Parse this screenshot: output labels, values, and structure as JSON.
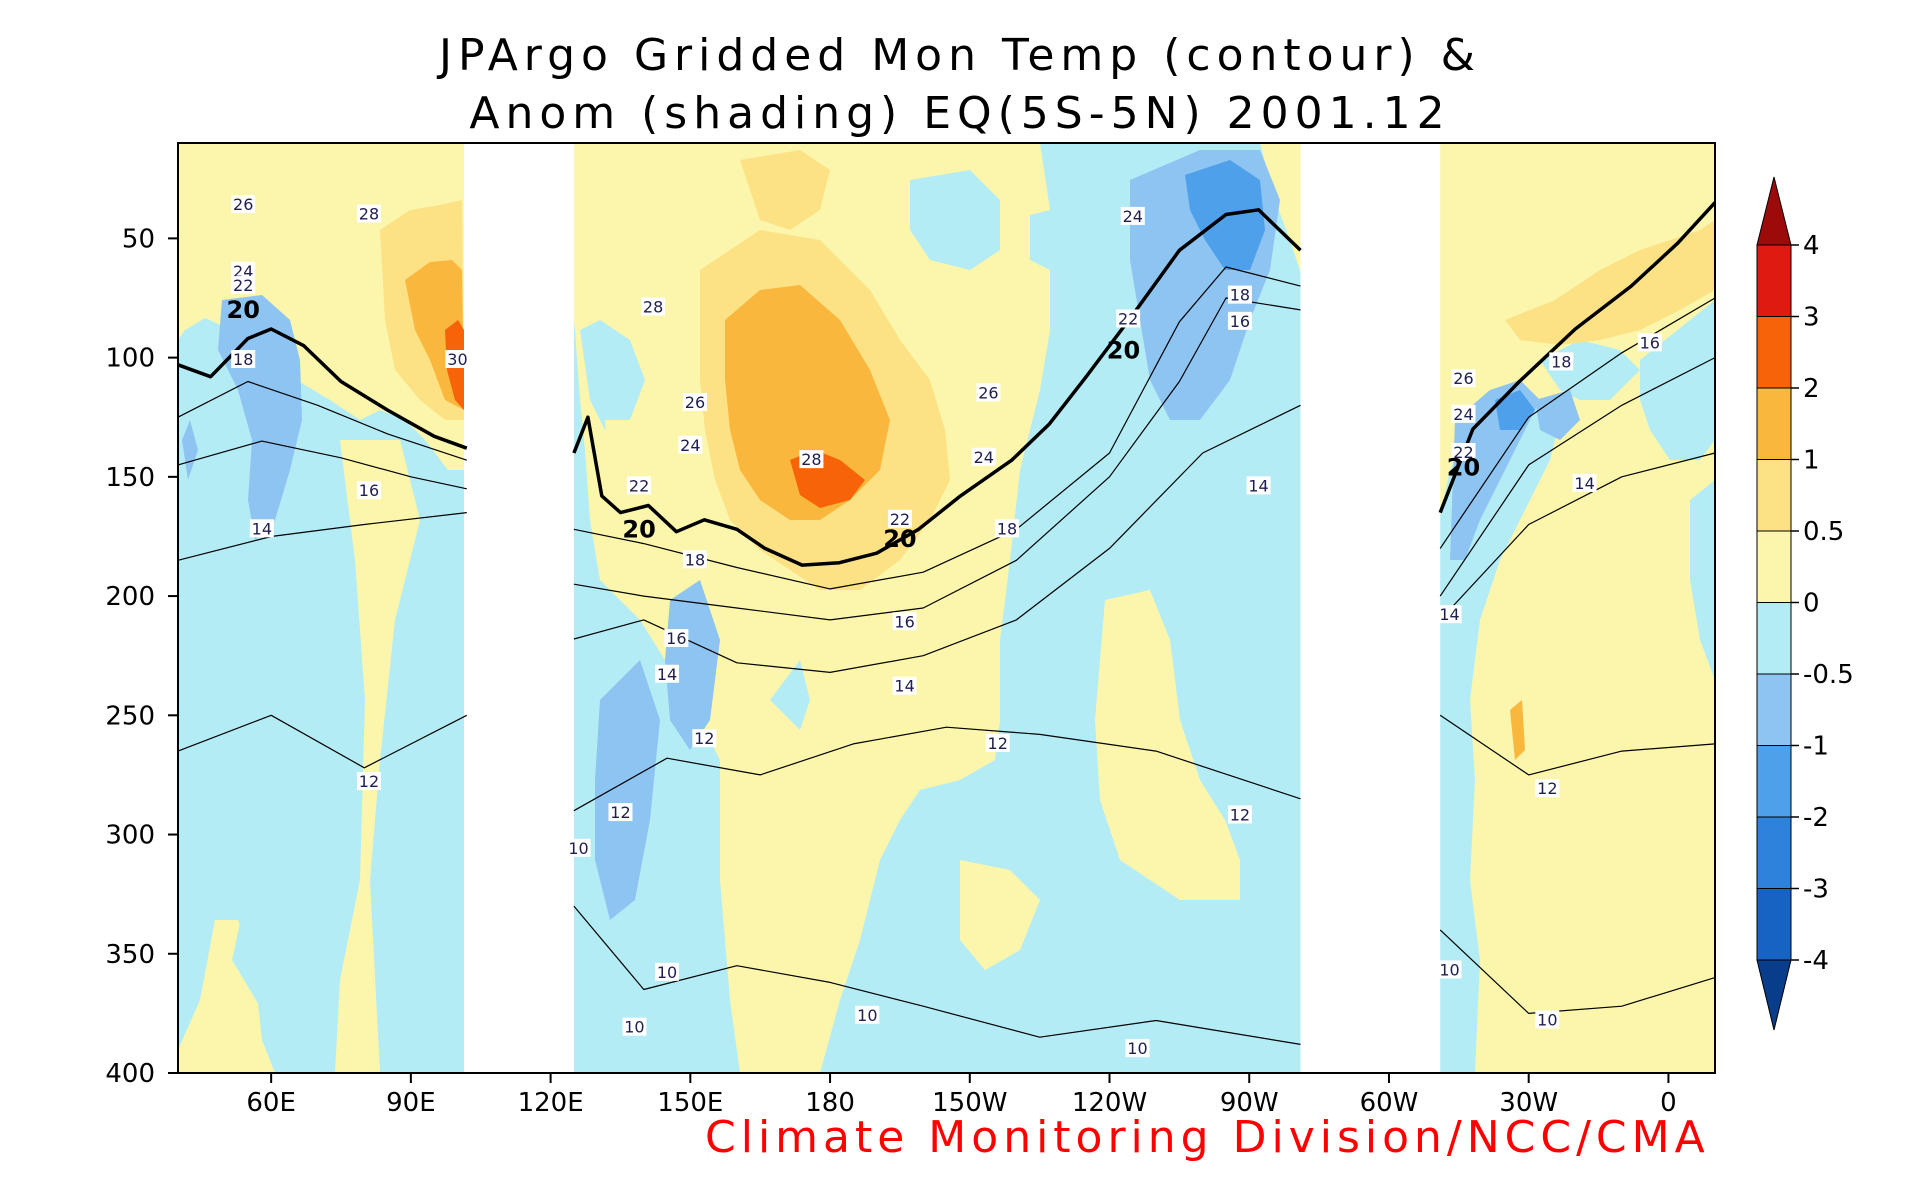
{
  "title_line1": "JPArgo Gridded Mon Temp (contour) &",
  "title_line2": "Anom (shading) EQ(5S-5N) 2001.12",
  "credit": "Climate Monitoring Division/NCC/CMA",
  "chart_data": {
    "type": "heatmap",
    "title": "JPArgo Gridded Mon Temp (contour) & Anom (shading) EQ(5S-5N) 2001.12",
    "x_ticks": [
      "60E",
      "90E",
      "120E",
      "150E",
      "180",
      "150W",
      "120W",
      "90W",
      "60W",
      "30W",
      "0"
    ],
    "x_range_deg_east": [
      40,
      370
    ],
    "y_ticks": [
      50,
      100,
      150,
      200,
      250,
      300,
      350,
      400
    ],
    "y_range": [
      10,
      400
    ],
    "y_inverted": true,
    "colorbar": {
      "levels": [
        -4,
        -3,
        -2,
        -1,
        -0.5,
        0,
        0.5,
        1,
        2,
        3,
        4
      ],
      "labels": [
        "-4",
        "-3",
        "-2",
        "-1",
        "-0.5",
        "0",
        "0.5",
        "1",
        "2",
        "3",
        "4"
      ],
      "colors": [
        "#083d8c",
        "#1663c4",
        "#2d82dc",
        "#4fa0ea",
        "#8ec4f2",
        "#b4ecf6",
        "#fbf6ac",
        "#fce285",
        "#f9b73e",
        "#f76308",
        "#df1a10",
        "#9c0a0a"
      ]
    },
    "missing_ranges_deg_east": [
      [
        102,
        125
      ],
      [
        281,
        311
      ]
    ],
    "contours": [
      {
        "value": 20,
        "bold": true,
        "segments": [
          [
            [
              40,
              103
            ],
            [
              47,
              108
            ],
            [
              55,
              92
            ],
            [
              60,
              88
            ],
            [
              67,
              95
            ],
            [
              75,
              110
            ],
            [
              85,
              122
            ],
            [
              95,
              133
            ],
            [
              102,
              138
            ]
          ],
          [
            [
              125,
              140
            ],
            [
              128,
              125
            ],
            [
              131,
              158
            ],
            [
              135,
              165
            ],
            [
              141,
              162
            ],
            [
              147,
              173
            ],
            [
              153,
              168
            ],
            [
              160,
              172
            ],
            [
              166,
              180
            ],
            [
              174,
              187
            ],
            [
              182,
              186
            ],
            [
              190,
              182
            ],
            [
              199,
              172
            ],
            [
              208,
              158
            ],
            [
              219,
              143
            ],
            [
              227,
              128
            ],
            [
              235,
              108
            ],
            [
              245,
              82
            ],
            [
              255,
              55
            ],
            [
              265,
              40
            ],
            [
              272,
              38
            ],
            [
              281,
              55
            ]
          ],
          [
            [
              311,
              165
            ],
            [
              318,
              130
            ],
            [
              328,
              110
            ],
            [
              340,
              88
            ],
            [
              352,
              70
            ],
            [
              362,
              52
            ],
            [
              370,
              35
            ]
          ]
        ]
      },
      {
        "value": 18,
        "bold": false,
        "segments": [
          [
            [
              40,
              125
            ],
            [
              55,
              110
            ],
            [
              70,
              120
            ],
            [
              85,
              132
            ],
            [
              102,
              143
            ]
          ],
          [
            [
              125,
              172
            ],
            [
              140,
              178
            ],
            [
              160,
              188
            ],
            [
              180,
              197
            ],
            [
              200,
              190
            ],
            [
              220,
              172
            ],
            [
              240,
              140
            ],
            [
              255,
              85
            ],
            [
              265,
              62
            ],
            [
              281,
              70
            ]
          ],
          [
            [
              311,
              180
            ],
            [
              330,
              125
            ],
            [
              350,
              98
            ],
            [
              370,
              75
            ]
          ]
        ]
      },
      {
        "value": 16,
        "bold": false,
        "segments": [
          [
            [
              40,
              145
            ],
            [
              58,
              135
            ],
            [
              75,
              142
            ],
            [
              90,
              150
            ],
            [
              102,
              155
            ]
          ],
          [
            [
              125,
              195
            ],
            [
              140,
              200
            ],
            [
              160,
              205
            ],
            [
              180,
              210
            ],
            [
              200,
              205
            ],
            [
              220,
              185
            ],
            [
              240,
              150
            ],
            [
              255,
              110
            ],
            [
              265,
              75
            ],
            [
              281,
              80
            ]
          ],
          [
            [
              311,
              200
            ],
            [
              330,
              145
            ],
            [
              350,
              120
            ],
            [
              370,
              100
            ]
          ]
        ]
      },
      {
        "value": 14,
        "bold": false,
        "segments": [
          [
            [
              40,
              185
            ],
            [
              60,
              175
            ],
            [
              80,
              170
            ],
            [
              102,
              165
            ]
          ],
          [
            [
              125,
              218
            ],
            [
              140,
              210
            ],
            [
              160,
              228
            ],
            [
              180,
              232
            ],
            [
              200,
              225
            ],
            [
              220,
              210
            ],
            [
              240,
              180
            ],
            [
              260,
              140
            ],
            [
              281,
              120
            ]
          ],
          [
            [
              311,
              210
            ],
            [
              330,
              170
            ],
            [
              350,
              150
            ],
            [
              370,
              140
            ]
          ]
        ]
      },
      {
        "value": 12,
        "bold": false,
        "segments": [
          [
            [
              40,
              265
            ],
            [
              60,
              250
            ],
            [
              80,
              272
            ],
            [
              102,
              250
            ]
          ],
          [
            [
              125,
              290
            ],
            [
              145,
              268
            ],
            [
              165,
              275
            ],
            [
              185,
              262
            ],
            [
              205,
              255
            ],
            [
              225,
              258
            ],
            [
              250,
              265
            ],
            [
              281,
              285
            ]
          ],
          [
            [
              311,
              250
            ],
            [
              330,
              275
            ],
            [
              350,
              265
            ],
            [
              370,
              262
            ]
          ]
        ]
      },
      {
        "value": 10,
        "bold": false,
        "segments": [
          [
            [
              125,
              330
            ],
            [
              140,
              365
            ],
            [
              160,
              355
            ],
            [
              180,
              362
            ],
            [
              200,
              372
            ],
            [
              225,
              385
            ],
            [
              250,
              378
            ],
            [
              281,
              388
            ]
          ],
          [
            [
              311,
              340
            ],
            [
              330,
              375
            ],
            [
              350,
              372
            ],
            [
              370,
              360
            ]
          ]
        ]
      }
    ],
    "contour_labels": [
      {
        "text": "26",
        "lon": 54,
        "depth": 36
      },
      {
        "text": "28",
        "lon": 81,
        "depth": 40
      },
      {
        "text": "24",
        "lon": 54,
        "depth": 64
      },
      {
        "text": "22",
        "lon": 54,
        "depth": 70
      },
      {
        "text": "20",
        "lon": 54,
        "depth": 80,
        "bold": true
      },
      {
        "text": "18",
        "lon": 54,
        "depth": 101
      },
      {
        "text": "30",
        "lon": 100,
        "depth": 101
      },
      {
        "text": "16",
        "lon": 81,
        "depth": 156
      },
      {
        "text": "14",
        "lon": 58,
        "depth": 172
      },
      {
        "text": "12",
        "lon": 81,
        "depth": 278
      },
      {
        "text": "28",
        "lon": 142,
        "depth": 79
      },
      {
        "text": "26",
        "lon": 151,
        "depth": 119
      },
      {
        "text": "24",
        "lon": 150,
        "depth": 137
      },
      {
        "text": "22",
        "lon": 139,
        "depth": 154
      },
      {
        "text": "20",
        "lon": 139,
        "depth": 172,
        "bold": true
      },
      {
        "text": "18",
        "lon": 151,
        "depth": 185
      },
      {
        "text": "16",
        "lon": 147,
        "depth": 218
      },
      {
        "text": "14",
        "lon": 145,
        "depth": 233
      },
      {
        "text": "12",
        "lon": 153,
        "depth": 260
      },
      {
        "text": "12",
        "lon": 135,
        "depth": 291
      },
      {
        "text": "10",
        "lon": 126,
        "depth": 306
      },
      {
        "text": "10",
        "lon": 145,
        "depth": 358
      },
      {
        "text": "10",
        "lon": 138,
        "depth": 381
      },
      {
        "text": "28",
        "lon": 176,
        "depth": 143
      },
      {
        "text": "22",
        "lon": 195,
        "depth": 168
      },
      {
        "text": "20",
        "lon": 195,
        "depth": 176,
        "bold": true
      },
      {
        "text": "16",
        "lon": 196,
        "depth": 211
      },
      {
        "text": "14",
        "lon": 196,
        "depth": 238
      },
      {
        "text": "10",
        "lon": 188,
        "depth": 376
      },
      {
        "text": "26",
        "lon": 214,
        "depth": 115
      },
      {
        "text": "24",
        "lon": 213,
        "depth": 142
      },
      {
        "text": "18",
        "lon": 218,
        "depth": 172
      },
      {
        "text": "12",
        "lon": 216,
        "depth": 262
      },
      {
        "text": "24",
        "lon": 245,
        "depth": 41
      },
      {
        "text": "22",
        "lon": 244,
        "depth": 84
      },
      {
        "text": "20",
        "lon": 243,
        "depth": 97,
        "bold": true
      },
      {
        "text": "10",
        "lon": 246,
        "depth": 390
      },
      {
        "text": "18",
        "lon": 268,
        "depth": 74
      },
      {
        "text": "16",
        "lon": 268,
        "depth": 85
      },
      {
        "text": "14",
        "lon": 272,
        "depth": 154
      },
      {
        "text": "12",
        "lon": 268,
        "depth": 292
      },
      {
        "text": "26",
        "lon": 316,
        "depth": 109
      },
      {
        "text": "24",
        "lon": 316,
        "depth": 124
      },
      {
        "text": "22",
        "lon": 316,
        "depth": 140
      },
      {
        "text": "20",
        "lon": 316,
        "depth": 146,
        "bold": true
      },
      {
        "text": "18",
        "lon": 337,
        "depth": 102
      },
      {
        "text": "16",
        "lon": 356,
        "depth": 94
      },
      {
        "text": "14",
        "lon": 342,
        "depth": 153
      },
      {
        "text": "14",
        "lon": 313,
        "depth": 208
      },
      {
        "text": "12",
        "lon": 334,
        "depth": 281
      },
      {
        "text": "10",
        "lon": 313,
        "depth": 357
      },
      {
        "text": "10",
        "lon": 334,
        "depth": 378
      }
    ]
  }
}
